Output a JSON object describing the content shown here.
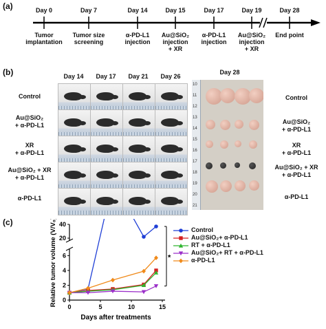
{
  "panel_a": {
    "label": "(a)",
    "days": [
      "Day 0",
      "Day 7",
      "Day 14",
      "Day 15",
      "Day 17",
      "Day 19",
      "Day 28"
    ],
    "events": [
      [
        "Tumor",
        "implantation"
      ],
      [
        "Tumor size",
        "screening"
      ],
      [
        "α-PD-L1",
        "injection"
      ],
      [
        "Au@SiO₂",
        "injection",
        "+ XR"
      ],
      [
        "α-PD-L1",
        "injection"
      ],
      [
        "Au@SiO₂",
        "injection",
        "+ XR"
      ],
      [
        "End point"
      ]
    ]
  },
  "panel_b": {
    "label": "(b)",
    "mouse_days": [
      "Day 14",
      "Day 17",
      "Day 21",
      "Day 26"
    ],
    "tumor_day": "Day 28",
    "groups_left": [
      [
        "Control"
      ],
      [
        "Au@SiO₂",
        "+ α-PD-L1"
      ],
      [
        "XR",
        "+ α-PD-L1"
      ],
      [
        "Au@SiO₂ + XR",
        "+ α-PD-L1"
      ],
      [
        "α-PD-L1"
      ]
    ],
    "groups_right": [
      [
        "Control"
      ],
      [
        "Au@SiO₂",
        "+ α-PD-L1"
      ],
      [
        "XR",
        "+ α-PD-L1"
      ],
      [
        "Au@SiO₂ + XR",
        "+ α-PD-L1"
      ],
      [
        "α-PD-L1"
      ]
    ],
    "ruler_numbers": [
      "10",
      "11",
      "12",
      "13",
      "14",
      "15",
      "16",
      "17",
      "18",
      "19",
      "20",
      "21"
    ]
  },
  "panel_c": {
    "label": "(c)",
    "significance": "*",
    "chart_data": {
      "type": "line",
      "xlabel": "Days after treatments",
      "ylabel": "Relative tumor volume (V/V₀)",
      "xlim": [
        0,
        15
      ],
      "xticks": [
        0,
        5,
        10,
        15
      ],
      "y_lower_ticks": [
        0,
        2,
        4,
        6
      ],
      "y_upper_ticks": [
        20,
        40
      ],
      "axis_break": [
        6.5,
        20
      ],
      "x": [
        0,
        3,
        7,
        12,
        14
      ],
      "series": [
        {
          "name": "Control",
          "color": "#1f3fd6",
          "marker": "circle",
          "values": [
            1,
            1.5,
            16,
            22,
            37
          ]
        },
        {
          "name": "Au@SiO₂+ α-PD-L1",
          "color": "#d42020",
          "marker": "square",
          "values": [
            1,
            1.3,
            1.5,
            2.1,
            4.0
          ]
        },
        {
          "name": "RT + α-PD-L1",
          "color": "#2fb52f",
          "marker": "triangle-up",
          "values": [
            1,
            1.2,
            1.4,
            2.0,
            3.7
          ]
        },
        {
          "name": "Au@SiO₂+ RT + α-PD-L1",
          "color": "#9b2fc9",
          "marker": "triangle-down",
          "values": [
            1,
            1.0,
            1.2,
            1.1,
            1.9
          ]
        },
        {
          "name": "α-PD-L1",
          "color": "#f08a1a",
          "marker": "diamond",
          "values": [
            1,
            1.6,
            2.7,
            3.9,
            5.7
          ]
        }
      ]
    }
  }
}
